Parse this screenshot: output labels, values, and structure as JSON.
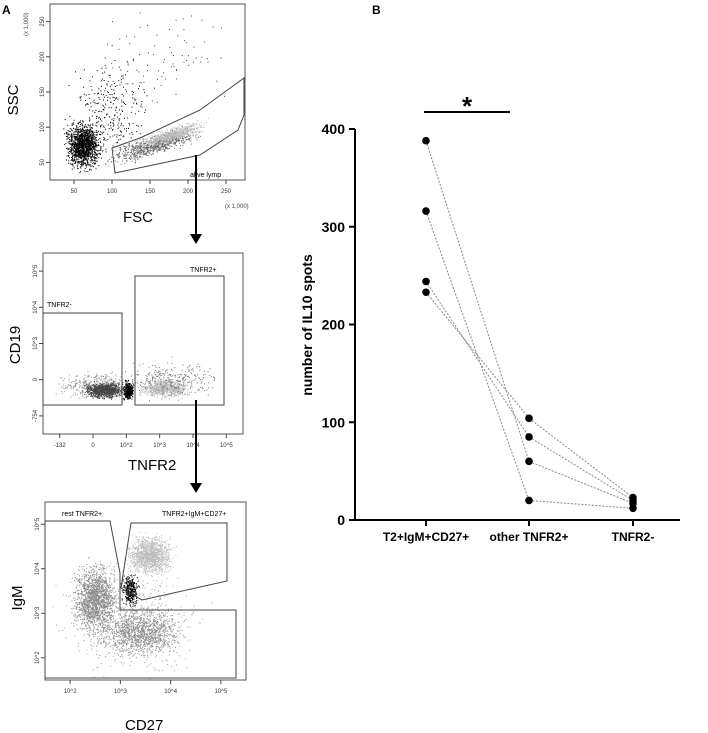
{
  "panel_labels": {
    "a": "A",
    "b": "B"
  },
  "flow_plots": [
    {
      "xlabel": "FSC",
      "ylabel": "SSC",
      "x_scale_note": "(x 1,000)",
      "y_scale_note": "(x 1,000)",
      "x_ticks": [
        "50",
        "100",
        "150",
        "200",
        "250"
      ],
      "y_ticks": [
        "50",
        "100",
        "150",
        "200",
        "250"
      ],
      "gates": [
        "alive lymp"
      ]
    },
    {
      "xlabel": "TNFR2",
      "ylabel": "CD19",
      "x_ticks": [
        "-132",
        "0",
        "10^2",
        "10^3",
        "10^4",
        "10^5"
      ],
      "y_ticks": [
        "-754",
        "0",
        "10^3",
        "10^4",
        "10^5"
      ],
      "gates": [
        "TNFR2-",
        "TNFR2+"
      ]
    },
    {
      "xlabel": "CD27",
      "ylabel": "IgM",
      "x_ticks": [
        "10^2",
        "10^3",
        "10^4",
        "10^5"
      ],
      "y_ticks": [
        "10^2",
        "10^3",
        "10^4",
        "10^5"
      ],
      "gates": [
        "rest TNFR2+",
        "TNFR2+IgM+CD27+"
      ]
    }
  ],
  "colors": {
    "dots_dark": "#000000",
    "dots_mid": "#666666",
    "dots_light": "#bdbdbd",
    "line": "#888888"
  },
  "chart_data": {
    "type": "scatter",
    "title": "",
    "xlabel": "",
    "ylabel": "number of IL10 spots",
    "categories": [
      "T2+IgM+CD27+",
      "other TNFR2+",
      "TNFR2-"
    ],
    "ylim": [
      0,
      400
    ],
    "y_ticks": [
      "0",
      "100",
      "200",
      "300",
      "400"
    ],
    "paired_lines": true,
    "series": [
      {
        "values": [
          388,
          60,
          17
        ]
      },
      {
        "values": [
          316,
          20,
          12
        ]
      },
      {
        "values": [
          244,
          85,
          20
        ]
      },
      {
        "values": [
          233,
          104,
          23
        ]
      }
    ],
    "annotation": "*",
    "grid": false
  }
}
